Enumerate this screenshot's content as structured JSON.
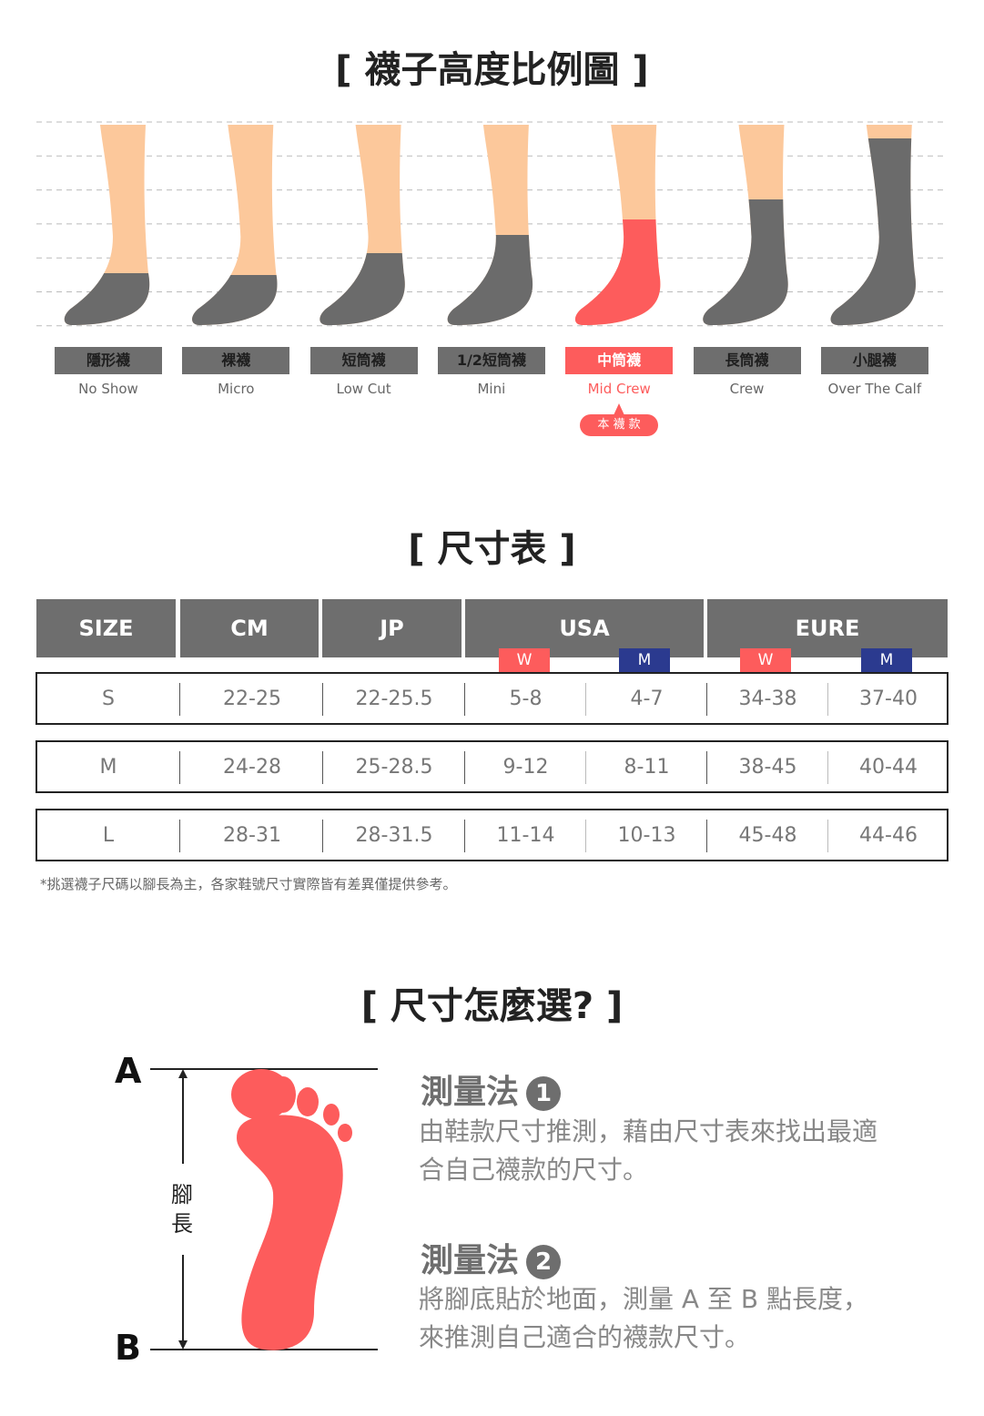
{
  "section1": {
    "title": "[ 襪子高度比例圖 ]",
    "types": [
      {
        "zh": "隱形襪",
        "en": "No Show",
        "cuff": 300
      },
      {
        "zh": "裸襪",
        "en": "Micro",
        "cuff": 302
      },
      {
        "zh": "短筒襪",
        "en": "Low Cut",
        "cuff": 278
      },
      {
        "zh": "1/2短筒襪",
        "en": "Mini",
        "cuff": 258
      },
      {
        "zh": "中筒襪",
        "en": "Mid Crew",
        "cuff": 241,
        "selected": true
      },
      {
        "zh": "長筒襪",
        "en": "Crew",
        "cuff": 219
      },
      {
        "zh": "小腿襪",
        "en": "Over The Calf",
        "cuff": 152
      }
    ],
    "this_item": "本 襪 款"
  },
  "colors": {
    "skin": "#fcc89b",
    "sock": "#6b6b6b",
    "accent": "#fd5c5c",
    "navy": "#2b3a8f",
    "header": "#6e6e6e"
  },
  "section2": {
    "title": "[ 尺寸表 ]",
    "headers": [
      "SIZE",
      "CM",
      "JP",
      "USA",
      "EURE"
    ],
    "sub": {
      "w": "W",
      "m": "M"
    },
    "rows": [
      [
        "S",
        "22-25",
        "22-25.5",
        "5-8",
        "4-7",
        "34-38",
        "37-40"
      ],
      [
        "M",
        "24-28",
        "25-28.5",
        "9-12",
        "8-11",
        "38-45",
        "40-44"
      ],
      [
        "L",
        "28-31",
        "28-31.5",
        "11-14",
        "10-13",
        "45-48",
        "44-46"
      ]
    ],
    "note": "*挑選襪子尺碼以腳長為主，各家鞋號尺寸實際皆有差異僅提供參考。"
  },
  "section3": {
    "title": "[ 尺寸怎麼選? ]",
    "a": "A",
    "b": "B",
    "foot_len": "腳長",
    "m1": {
      "title": "測量法",
      "num": "1",
      "text": "由鞋款尺寸推測，藉由尺寸表來找出最適合自己襪款的尺寸。"
    },
    "m2": {
      "title": "測量法",
      "num": "2",
      "text": "將腳底貼於地面，測量 A 至 B 點長度，來推測自己適合的襪款尺寸。"
    }
  }
}
